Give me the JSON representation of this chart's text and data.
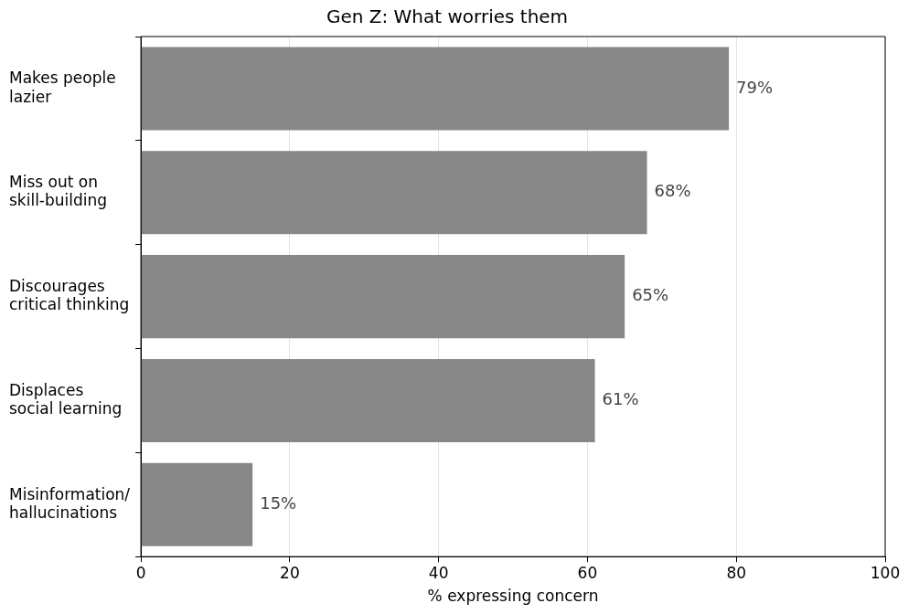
{
  "chart_data": {
    "type": "bar",
    "orientation": "horizontal",
    "title": "Gen Z: What worries them",
    "xlabel": "% expressing concern",
    "categories": [
      "Makes people\nlazier",
      "Miss out on\nskill-building",
      "Discourages\ncritical thinking",
      "Displaces\nsocial learning",
      "Misinformation/\nhallucinations"
    ],
    "values": [
      79,
      68,
      65,
      61,
      15
    ],
    "value_labels": [
      "79%",
      "68%",
      "65%",
      "61%",
      "15%"
    ],
    "color": "#878787",
    "xlim": [
      0,
      100
    ],
    "xticks": [
      0,
      20,
      40,
      60,
      80,
      100
    ],
    "grid": "x",
    "legend": false
  }
}
